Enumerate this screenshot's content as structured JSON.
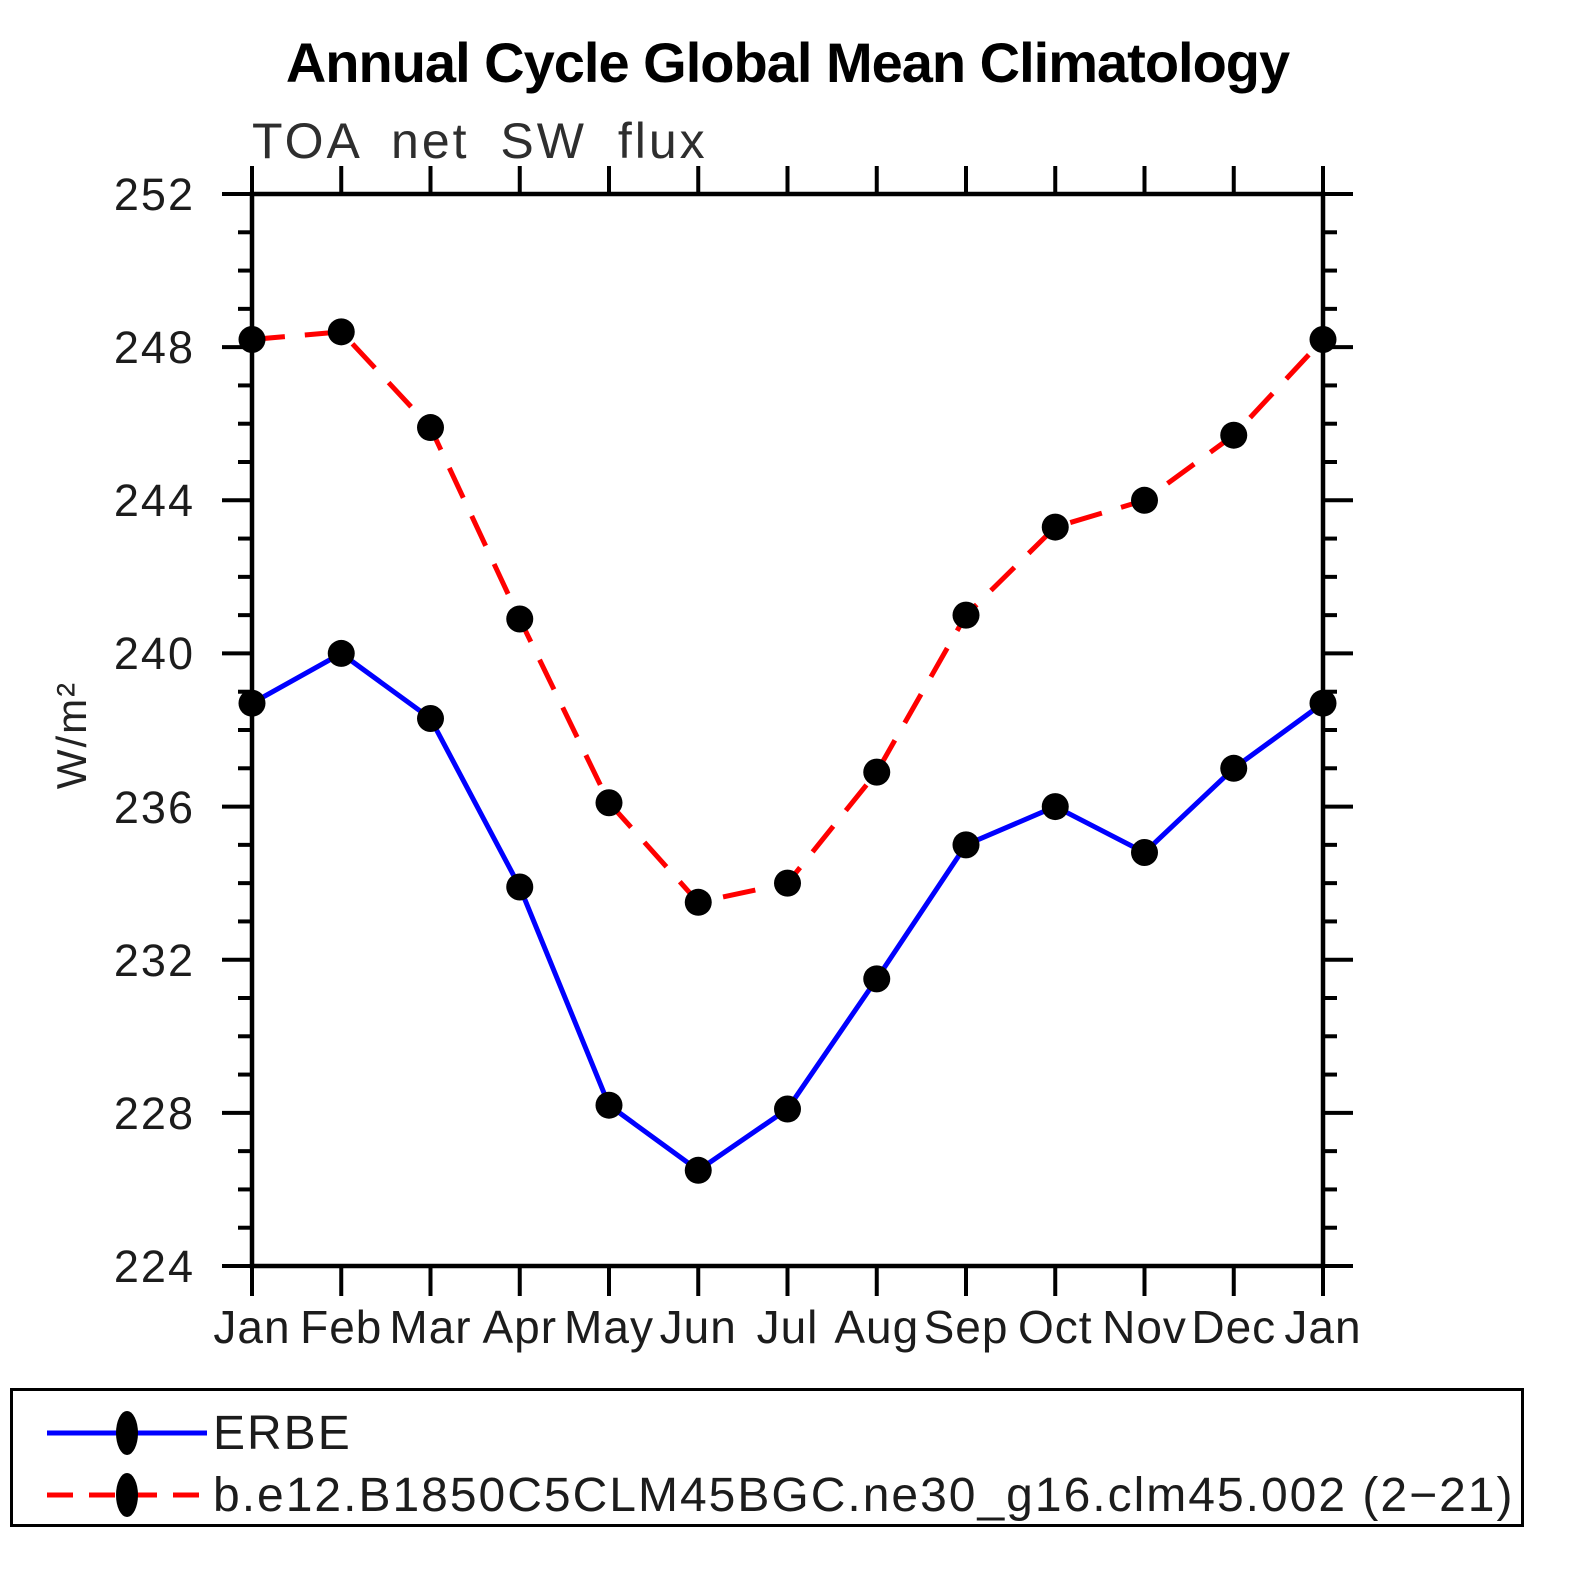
{
  "header": {
    "title": "Annual Cycle Global Mean Climatology",
    "subtitle": "TOA net SW flux"
  },
  "chart_data": {
    "type": "line",
    "title": "Annual Cycle Global Mean Climatology",
    "subtitle": "TOA net SW flux",
    "xlabel": "",
    "ylabel": "W/m²",
    "x_categories": [
      "Jan",
      "Feb",
      "Mar",
      "Apr",
      "May",
      "Jun",
      "Jul",
      "Aug",
      "Sep",
      "Oct",
      "Nov",
      "Dec",
      "Jan"
    ],
    "ylim": [
      224,
      252
    ],
    "ytick_major": [
      224,
      228,
      232,
      236,
      240,
      244,
      248,
      252
    ],
    "ytick_minor_step": 1,
    "grid": false,
    "legend_position": "bottom-box",
    "axis_color": "#000000",
    "marker_color": "#000000",
    "series": [
      {
        "name": "ERBE",
        "color": "#0000ff",
        "style": "solid",
        "marker": "circle",
        "values": [
          238.7,
          240.0,
          238.3,
          233.9,
          228.2,
          226.5,
          228.1,
          231.5,
          235.0,
          236.0,
          234.8,
          237.0,
          238.7
        ]
      },
      {
        "name": "b.e12.B1850C5CLM45BGC.ne30_g16.clm45.002 (2−21)",
        "color": "#ff0000",
        "style": "dashed",
        "marker": "circle",
        "values": [
          248.2,
          248.4,
          245.9,
          240.9,
          236.1,
          233.5,
          234.0,
          236.9,
          241.0,
          243.3,
          244.0,
          245.7,
          248.2
        ]
      }
    ]
  }
}
